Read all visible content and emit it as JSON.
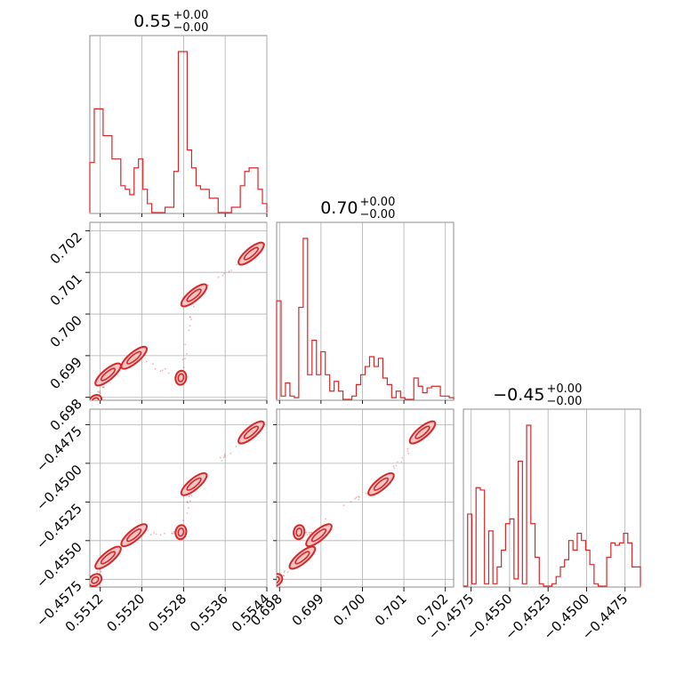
{
  "chart_data": {
    "type": "corner",
    "color": "#d62728",
    "fill_color": "#f3c6c6",
    "grid": true,
    "parameters": [
      {
        "title_value": "0.55",
        "title_sup": "+0.00",
        "title_sub": "−0.00",
        "range": [
          0.551,
          0.5544
        ],
        "ticks": [
          0.5512,
          0.552,
          0.5528,
          0.5536,
          0.5544
        ],
        "tick_labels": [
          "0.5512",
          "0.5520",
          "0.5528",
          "0.5536",
          "0.5544"
        ]
      },
      {
        "title_value": "0.70",
        "title_sup": "+0.00",
        "title_sub": "−0.00",
        "range": [
          0.69793,
          0.7022
        ],
        "ticks": [
          0.698,
          0.699,
          0.7,
          0.701,
          0.702
        ],
        "tick_labels": [
          "0.698",
          "0.699",
          "0.700",
          "0.701",
          "0.702"
        ]
      },
      {
        "title_value": "−0.45",
        "title_sup": "+0.00",
        "title_sub": "−0.00",
        "range": [
          -0.458,
          -0.4465
        ],
        "ticks": [
          -0.4575,
          -0.455,
          -0.4525,
          -0.45,
          -0.4475
        ],
        "tick_labels": [
          "−0.4575",
          "−0.4550",
          "−0.4525",
          "−0.4500",
          "−0.4475"
        ]
      }
    ],
    "histograms": [
      [
        28,
        58,
        58,
        43,
        43,
        30,
        30,
        15,
        13,
        10,
        25,
        30,
        13,
        5,
        0,
        0,
        0,
        3,
        3,
        23,
        90,
        90,
        35,
        25,
        15,
        13,
        13,
        8,
        8,
        0,
        0,
        0,
        3,
        3,
        15,
        23,
        25,
        25,
        13,
        5
      ],
      [
        60,
        2,
        10,
        2,
        1,
        56,
        98,
        15,
        36,
        15,
        29,
        15,
        5,
        11,
        5,
        0,
        0,
        2,
        9,
        15,
        20,
        26,
        20,
        25,
        13,
        9,
        1,
        5,
        1,
        0,
        0,
        13,
        8,
        4,
        7,
        8,
        8,
        2,
        2,
        1
      ],
      [
        0,
        30,
        1,
        41,
        40,
        1,
        23,
        1,
        8,
        15,
        26,
        28,
        3,
        52,
        1,
        67,
        26,
        12,
        1,
        0,
        0,
        1,
        4,
        8,
        11,
        19,
        15,
        22,
        19,
        15,
        9,
        1,
        0,
        0,
        12,
        18,
        17,
        18,
        22,
        18,
        8,
        8
      ]
    ],
    "clusters": [
      {
        "x": 0.5511,
        "y": 0.69791,
        "z": -0.45755
      },
      {
        "x": 0.55135,
        "y": 0.69855,
        "z": -0.4561
      },
      {
        "x": 0.55185,
        "y": 0.69895,
        "z": -0.45465
      },
      {
        "x": 0.55275,
        "y": 0.69847,
        "z": -0.45445
      },
      {
        "x": 0.553,
        "y": 0.70045,
        "z": -0.45135
      },
      {
        "x": 0.5541,
        "y": 0.70145,
        "z": -0.448
      }
    ]
  }
}
